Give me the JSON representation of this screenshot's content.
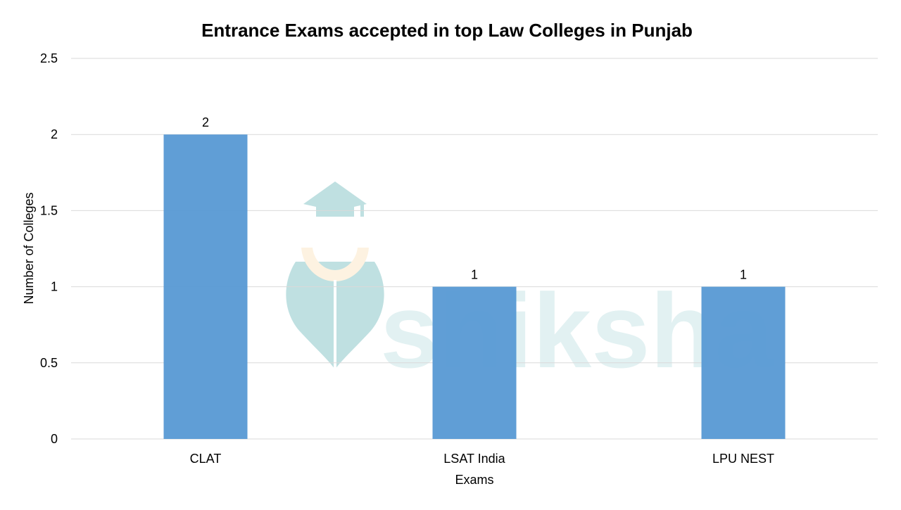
{
  "chart_data": {
    "type": "bar",
    "title": "Entrance Exams accepted in top Law Colleges in Punjab",
    "xlabel": "Exams",
    "ylabel": "Number of Colleges",
    "categories": [
      "CLAT",
      "LSAT India",
      "LPU NEST"
    ],
    "values": [
      2,
      1,
      1
    ],
    "data_labels": [
      "2",
      "1",
      "1"
    ],
    "ylim": [
      0,
      2.5
    ],
    "yticks": [
      0,
      0.5,
      1,
      1.5,
      2,
      2.5
    ],
    "ytick_labels": [
      "0",
      "0.5",
      "1",
      "1.5",
      "2",
      "2.5"
    ],
    "grid": true,
    "legend": "none",
    "bar_color": "#5b9bd5"
  },
  "watermark": {
    "text": "shiksha",
    "color": "#8cc7c9",
    "accent_color": "#fde9c9"
  }
}
